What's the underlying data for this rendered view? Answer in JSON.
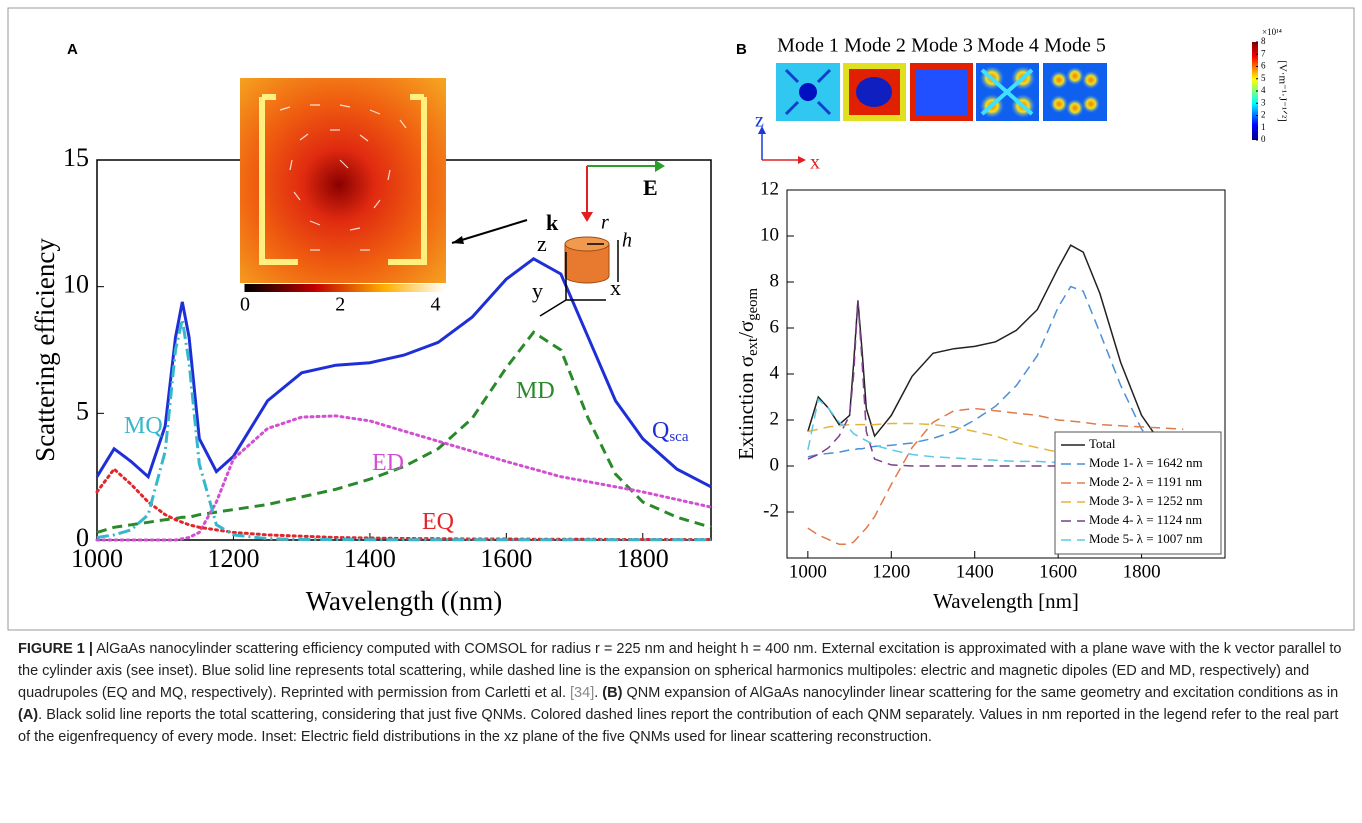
{
  "panel_labels": [
    "A",
    "B"
  ],
  "chart_data": [
    {
      "type": "line",
      "x_label": "Wavelength ((nm)",
      "y_label": "Scattering efficiency",
      "x": [
        1000,
        1025,
        1050,
        1075,
        1100,
        1115,
        1125,
        1135,
        1150,
        1175,
        1200,
        1250,
        1300,
        1350,
        1400,
        1450,
        1500,
        1550,
        1600,
        1640,
        1680,
        1720,
        1760,
        1800,
        1850,
        1900
      ],
      "xlim": [
        1000,
        1900
      ],
      "xticks": [
        1000,
        1200,
        1400,
        1600,
        1800
      ],
      "ylim": [
        0,
        15
      ],
      "yticks": [
        0,
        5,
        10,
        15
      ],
      "series": [
        {
          "name": "Q",
          "subscript": "sca",
          "color": "#1f2fd8",
          "dash": "solid",
          "values": [
            2.5,
            3.6,
            3.1,
            2.5,
            4.5,
            8.0,
            9.4,
            8.0,
            4.0,
            2.7,
            3.3,
            5.5,
            6.6,
            6.9,
            7.0,
            7.3,
            7.8,
            8.8,
            10.3,
            11.1,
            10.5,
            8.0,
            5.5,
            4.0,
            2.8,
            2.1
          ]
        },
        {
          "name": "MD",
          "color": "#2a8a2a",
          "dash": "dashed",
          "values": [
            0.3,
            0.5,
            0.6,
            0.7,
            0.8,
            0.85,
            0.9,
            0.9,
            1.0,
            1.1,
            1.2,
            1.4,
            1.7,
            2.0,
            2.4,
            2.9,
            3.6,
            4.8,
            6.8,
            8.2,
            7.5,
            4.8,
            2.6,
            1.5,
            0.9,
            0.5
          ]
        },
        {
          "name": "ED",
          "color": "#d24fd2",
          "dash": "dotted",
          "values": [
            0,
            0,
            0,
            0,
            0,
            0,
            0.05,
            0.1,
            0.3,
            1.5,
            3.2,
            4.4,
            4.85,
            4.9,
            4.7,
            4.3,
            3.9,
            3.5,
            3.1,
            2.8,
            2.5,
            2.3,
            2.1,
            1.9,
            1.6,
            1.3
          ]
        },
        {
          "name": "EQ",
          "color": "#e3262b",
          "dash": "dotted",
          "values": [
            1.9,
            2.8,
            2.2,
            1.5,
            1.0,
            0.8,
            0.7,
            0.6,
            0.5,
            0.4,
            0.3,
            0.2,
            0.15,
            0.1,
            0.08,
            0.06,
            0.05,
            0.04,
            0.04,
            0.03,
            0.03,
            0.03,
            0.02,
            0.02,
            0.02,
            0.02
          ]
        },
        {
          "name": "MQ",
          "color": "#35b8cc",
          "dash": "dashdot",
          "values": [
            0.1,
            0.2,
            0.4,
            1.0,
            3.5,
            7.5,
            8.7,
            7.0,
            3.0,
            0.6,
            0.2,
            0.05,
            0.02,
            0.02,
            0.01,
            0.01,
            0.01,
            0.01,
            0.01,
            0.01,
            0.01,
            0.01,
            0.01,
            0.01,
            0.01,
            0.01
          ]
        }
      ]
    },
    {
      "type": "line",
      "x_label": "Wavelength  [nm]",
      "y_label": [
        "Extinction σ",
        "ext",
        "/σ",
        "geom"
      ],
      "x": [
        1000,
        1025,
        1050,
        1075,
        1100,
        1110,
        1120,
        1130,
        1140,
        1160,
        1200,
        1250,
        1300,
        1350,
        1400,
        1450,
        1500,
        1550,
        1600,
        1630,
        1660,
        1700,
        1750,
        1800,
        1850,
        1900
      ],
      "xlim": [
        950,
        2000
      ],
      "xticks": [
        1000,
        1200,
        1400,
        1600,
        1800
      ],
      "ylim": [
        -4,
        12
      ],
      "yticks": [
        -2,
        0,
        2,
        4,
        6,
        8,
        10,
        12
      ],
      "legend": "lower right",
      "series": [
        {
          "name": "Total",
          "color": "#222222",
          "dash": "solid",
          "values": [
            1.5,
            3.0,
            2.5,
            1.8,
            2.2,
            4.5,
            7.2,
            5.0,
            2.5,
            1.3,
            2.2,
            3.9,
            4.9,
            5.1,
            5.2,
            5.4,
            5.9,
            6.8,
            8.6,
            9.6,
            9.3,
            7.5,
            4.5,
            2.2,
            0.9,
            0.3
          ]
        },
        {
          "name": "Mode 1- λ = 1642 nm",
          "color": "#4a90d9",
          "dash": "dashed",
          "values": [
            0.4,
            0.5,
            0.55,
            0.6,
            0.7,
            0.7,
            0.75,
            0.75,
            0.8,
            0.85,
            0.9,
            1.0,
            1.2,
            1.5,
            2.0,
            2.6,
            3.5,
            4.8,
            6.9,
            7.8,
            7.6,
            5.8,
            3.5,
            1.6,
            0.6,
            0.2
          ]
        },
        {
          "name": "Mode 2- λ = 1191 nm",
          "color": "#e07b4a",
          "dash": "dashed",
          "values": [
            -2.7,
            -3.0,
            -3.2,
            -3.4,
            -3.4,
            -3.3,
            -3.1,
            -2.9,
            -2.7,
            -2.2,
            -0.8,
            0.8,
            1.9,
            2.4,
            2.5,
            2.4,
            2.3,
            2.2,
            2.0,
            1.95,
            1.9,
            1.8,
            1.75,
            1.7,
            1.65,
            1.6
          ]
        },
        {
          "name": "Mode 3- λ = 1252 nm",
          "color": "#e6b43c",
          "dash": "dashed",
          "values": [
            1.5,
            1.6,
            1.7,
            1.75,
            1.8,
            1.8,
            1.8,
            1.8,
            1.8,
            1.8,
            1.85,
            1.85,
            1.8,
            1.7,
            1.5,
            1.3,
            1.0,
            0.8,
            0.6,
            0.5,
            0.45,
            0.35,
            0.3,
            0.25,
            0.2,
            0.2
          ]
        },
        {
          "name": "Mode 4- λ = 1124 nm",
          "color": "#7b3f8c",
          "dash": "dashed",
          "values": [
            0.3,
            0.5,
            0.8,
            1.3,
            2.2,
            4.0,
            7.2,
            4.5,
            1.5,
            0.3,
            0.05,
            0,
            0,
            0,
            0,
            0,
            0,
            0,
            0,
            0,
            0,
            0,
            0,
            0,
            0,
            0
          ]
        },
        {
          "name": "Mode 5- λ = 1007 nm",
          "color": "#5bc8e8",
          "dash": "dashed",
          "values": [
            0.7,
            2.9,
            2.5,
            1.9,
            1.6,
            1.4,
            1.3,
            1.2,
            1.1,
            0.9,
            0.7,
            0.5,
            0.4,
            0.35,
            0.3,
            0.25,
            0.2,
            0.2,
            0.15,
            0.15,
            0.1,
            0.1,
            0.1,
            0.1,
            0.1,
            0.1
          ]
        }
      ]
    }
  ],
  "inset_a": {
    "colorbar_lim": [
      0,
      4.2
    ],
    "colorbar_ticks": [
      0,
      2,
      4
    ],
    "schematic": [
      "k",
      "r",
      "E",
      "z",
      "h",
      "y",
      "x"
    ]
  },
  "inset_b": {
    "modes": [
      "Mode 1",
      "Mode 2",
      "Mode 3",
      "Mode 4",
      "Mode 5"
    ],
    "colorbar_scale": "×10¹⁴",
    "colorbar_unit": "[V·m⁻¹·J⁻¹ᐟ²]",
    "colorbar_lim": [
      0,
      8
    ],
    "colorbar_ticks": [
      0,
      1,
      2,
      3,
      4,
      5,
      6,
      7,
      8
    ],
    "axes": [
      "z",
      "x"
    ]
  },
  "caption": [
    "FIGURE 1 |",
    " AlGaAs nanocylinder scattering efficiency computed with COMSOL for radius r = 225 nm and height h = 400 nm. External excitation is approximated with a plane wave with the k vector parallel to the cylinder axis (see inset). Blue solid line represents total scattering, while dashed line is the expansion on spherical harmonics multipoles: electric and magnetic dipoles (ED and MD, respectively) and quadrupoles (EQ and MQ, respectively). Reprinted with permission from Carletti et al. ",
    "[34]",
    ". ",
    "(B)",
    " QNM expansion of AlGaAs nanocylinder linear scattering for the same geometry and excitation conditions as in ",
    "(A)",
    ". Black solid line reports the total scattering, considering that just five QNMs. Colored dashed lines report the contribution of each QNM separately. Values in nm reported in the legend refer to the real part of the eigenfrequency of every mode. Inset: Electric field distributions in the xz plane of the five QNMs used for linear scattering reconstruction."
  ]
}
